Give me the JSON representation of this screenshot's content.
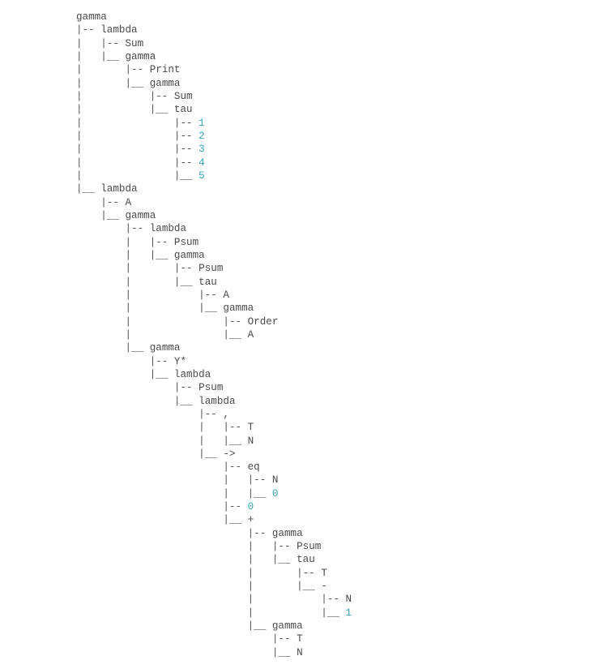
{
  "colors": {
    "text": "#4a4a4a",
    "number": "#36a3bd",
    "background": "#ffffff"
  },
  "lines": [
    {
      "p": "",
      "t": "gamma",
      "k": "kw"
    },
    {
      "p": "|-- ",
      "t": "lambda",
      "k": "kw"
    },
    {
      "p": "|   |-- ",
      "t": "Sum",
      "k": "kw"
    },
    {
      "p": "|   |__ ",
      "t": "gamma",
      "k": "kw"
    },
    {
      "p": "|       |-- ",
      "t": "Print",
      "k": "kw"
    },
    {
      "p": "|       |__ ",
      "t": "gamma",
      "k": "kw"
    },
    {
      "p": "|           |-- ",
      "t": "Sum",
      "k": "kw"
    },
    {
      "p": "|           |__ ",
      "t": "tau",
      "k": "kw"
    },
    {
      "p": "|               |-- ",
      "t": "1",
      "k": "num"
    },
    {
      "p": "|               |-- ",
      "t": "2",
      "k": "num"
    },
    {
      "p": "|               |-- ",
      "t": "3",
      "k": "num"
    },
    {
      "p": "|               |-- ",
      "t": "4",
      "k": "num"
    },
    {
      "p": "|               |__ ",
      "t": "5",
      "k": "num"
    },
    {
      "p": "|__ ",
      "t": "lambda",
      "k": "kw"
    },
    {
      "p": "    |-- ",
      "t": "A",
      "k": "kw"
    },
    {
      "p": "    |__ ",
      "t": "gamma",
      "k": "kw"
    },
    {
      "p": "        |-- ",
      "t": "lambda",
      "k": "kw"
    },
    {
      "p": "        |   |-- ",
      "t": "Psum",
      "k": "kw"
    },
    {
      "p": "        |   |__ ",
      "t": "gamma",
      "k": "kw"
    },
    {
      "p": "        |       |-- ",
      "t": "Psum",
      "k": "kw"
    },
    {
      "p": "        |       |__ ",
      "t": "tau",
      "k": "kw"
    },
    {
      "p": "        |           |-- ",
      "t": "A",
      "k": "kw"
    },
    {
      "p": "        |           |__ ",
      "t": "gamma",
      "k": "kw"
    },
    {
      "p": "        |               |-- ",
      "t": "Order",
      "k": "kw"
    },
    {
      "p": "        |               |__ ",
      "t": "A",
      "k": "kw"
    },
    {
      "p": "        |__ ",
      "t": "gamma",
      "k": "kw"
    },
    {
      "p": "            |-- ",
      "t": "Y*",
      "k": "kw"
    },
    {
      "p": "            |__ ",
      "t": "lambda",
      "k": "kw"
    },
    {
      "p": "                |-- ",
      "t": "Psum",
      "k": "kw"
    },
    {
      "p": "                |__ ",
      "t": "lambda",
      "k": "kw"
    },
    {
      "p": "                    |-- ",
      "t": ",",
      "k": "kw"
    },
    {
      "p": "                    |   |-- ",
      "t": "T",
      "k": "kw"
    },
    {
      "p": "                    |   |__ ",
      "t": "N",
      "k": "kw"
    },
    {
      "p": "                    |__ ",
      "t": "->",
      "k": "kw"
    },
    {
      "p": "                        |-- ",
      "t": "eq",
      "k": "kw"
    },
    {
      "p": "                        |   |-- ",
      "t": "N",
      "k": "kw"
    },
    {
      "p": "                        |   |__ ",
      "t": "0",
      "k": "num"
    },
    {
      "p": "                        |-- ",
      "t": "0",
      "k": "num"
    },
    {
      "p": "                        |__ ",
      "t": "+",
      "k": "kw"
    },
    {
      "p": "                            |-- ",
      "t": "gamma",
      "k": "kw"
    },
    {
      "p": "                            |   |-- ",
      "t": "Psum",
      "k": "kw"
    },
    {
      "p": "                            |   |__ ",
      "t": "tau",
      "k": "kw"
    },
    {
      "p": "                            |       |-- ",
      "t": "T",
      "k": "kw"
    },
    {
      "p": "                            |       |__ ",
      "t": "-",
      "k": "kw"
    },
    {
      "p": "                            |           |-- ",
      "t": "N",
      "k": "kw"
    },
    {
      "p": "                            |           |__ ",
      "t": "1",
      "k": "num"
    },
    {
      "p": "                            |__ ",
      "t": "gamma",
      "k": "kw"
    },
    {
      "p": "                                |-- ",
      "t": "T",
      "k": "kw"
    },
    {
      "p": "                                |__ ",
      "t": "N",
      "k": "kw"
    }
  ]
}
